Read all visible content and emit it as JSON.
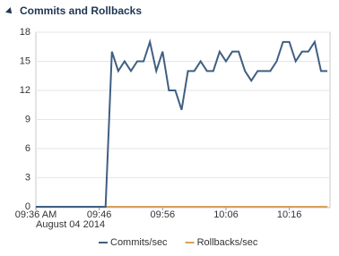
{
  "chart_data": {
    "type": "line",
    "title": "Commits and Rollbacks",
    "categories": [
      "09:36 AM",
      null,
      null,
      null,
      null,
      null,
      null,
      null,
      null,
      null,
      "09:46",
      null,
      null,
      null,
      null,
      null,
      null,
      null,
      null,
      null,
      "09:56",
      null,
      null,
      null,
      null,
      null,
      null,
      null,
      null,
      null,
      "10:06",
      null,
      null,
      null,
      null,
      null,
      null,
      null,
      null,
      null,
      "10:16",
      null,
      null,
      null,
      null,
      null,
      null
    ],
    "x_date_label": "August 04 2014",
    "series": [
      {
        "name": "Commits/sec",
        "color": "#3f5f82",
        "values": [
          0,
          0,
          0,
          0,
          0,
          0,
          0,
          0,
          0,
          0,
          0,
          0,
          16,
          14,
          15,
          14,
          15,
          15,
          17,
          14,
          16,
          12,
          12,
          10,
          14,
          14,
          15,
          14,
          14,
          16,
          15,
          16,
          16,
          14,
          13,
          14,
          14,
          14,
          15,
          17,
          17,
          15,
          16,
          16,
          17,
          14,
          14
        ]
      },
      {
        "name": "Rollbacks/sec",
        "color": "#d9a05b",
        "values": [
          0,
          0,
          0,
          0,
          0,
          0,
          0,
          0,
          0,
          0,
          0,
          0,
          0,
          0,
          0,
          0,
          0,
          0,
          0,
          0,
          0,
          0,
          0,
          0,
          0,
          0,
          0,
          0,
          0,
          0,
          0,
          0,
          0,
          0,
          0,
          0,
          0,
          0,
          0,
          0,
          0,
          0,
          0,
          0,
          0,
          0,
          0
        ]
      }
    ],
    "ylim": [
      0,
      18
    ],
    "yticks": [
      0,
      3,
      6,
      9,
      12,
      15,
      18
    ],
    "grid": true,
    "legend": "bottom"
  }
}
